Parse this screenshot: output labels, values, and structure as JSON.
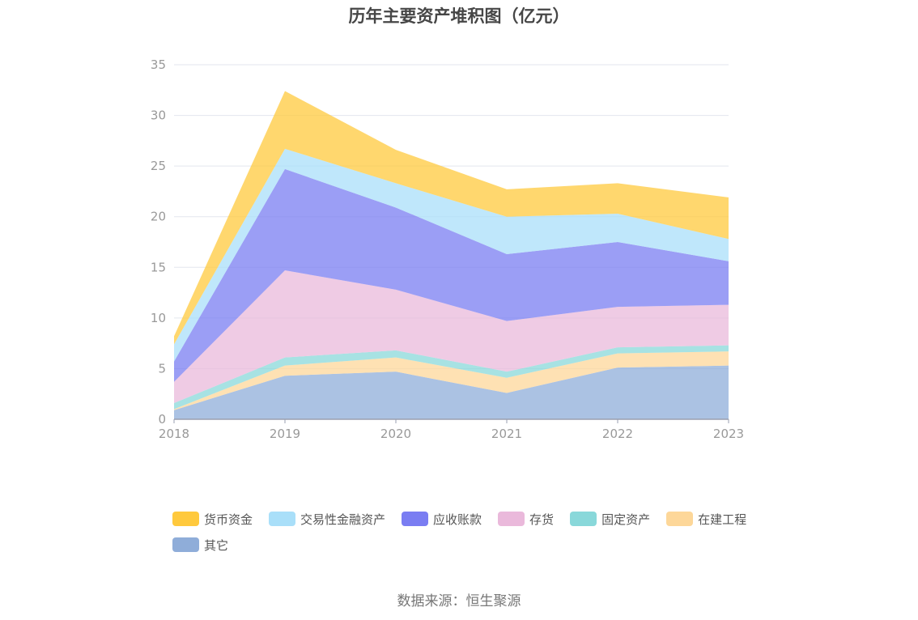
{
  "chart_data": {
    "type": "area",
    "stacked": true,
    "title": "历年主要资产堆积图（亿元）",
    "x": [
      "2018",
      "2019",
      "2020",
      "2021",
      "2022",
      "2023"
    ],
    "ylim": [
      0,
      35
    ],
    "yticks": [
      "0",
      "5",
      "10",
      "15",
      "20",
      "25",
      "30",
      "35"
    ],
    "grid": true,
    "legend_position": "bottom",
    "series": [
      {
        "name": "其它",
        "color": "#8FADD9",
        "values": [
          0.9,
          4.3,
          4.7,
          2.6,
          5.1,
          5.3
        ]
      },
      {
        "name": "在建工程",
        "color": "#FDD799",
        "values": [
          0.1,
          1.0,
          1.4,
          1.5,
          1.4,
          1.4
        ]
      },
      {
        "name": "固定资产",
        "color": "#89D8DA",
        "values": [
          0.6,
          0.8,
          0.7,
          0.6,
          0.6,
          0.6
        ]
      },
      {
        "name": "存货",
        "color": "#EAB9DB",
        "values": [
          2.1,
          8.6,
          6.0,
          5.0,
          4.0,
          4.0
        ]
      },
      {
        "name": "应收账款",
        "color": "#7A7DF2",
        "values": [
          2.0,
          10.0,
          8.1,
          6.6,
          6.4,
          4.3
        ]
      },
      {
        "name": "交易性金融资产",
        "color": "#A9DFF9",
        "values": [
          1.7,
          2.0,
          2.4,
          3.7,
          2.8,
          2.2
        ]
      },
      {
        "name": "货币资金",
        "color": "#FFC93D",
        "values": [
          0.8,
          5.7,
          3.3,
          2.7,
          3.0,
          4.1
        ]
      }
    ],
    "legend_order": [
      "货币资金",
      "交易性金融资产",
      "应收账款",
      "存货",
      "固定资产",
      "在建工程",
      "其它"
    ]
  },
  "source": "数据来源：恒生聚源"
}
